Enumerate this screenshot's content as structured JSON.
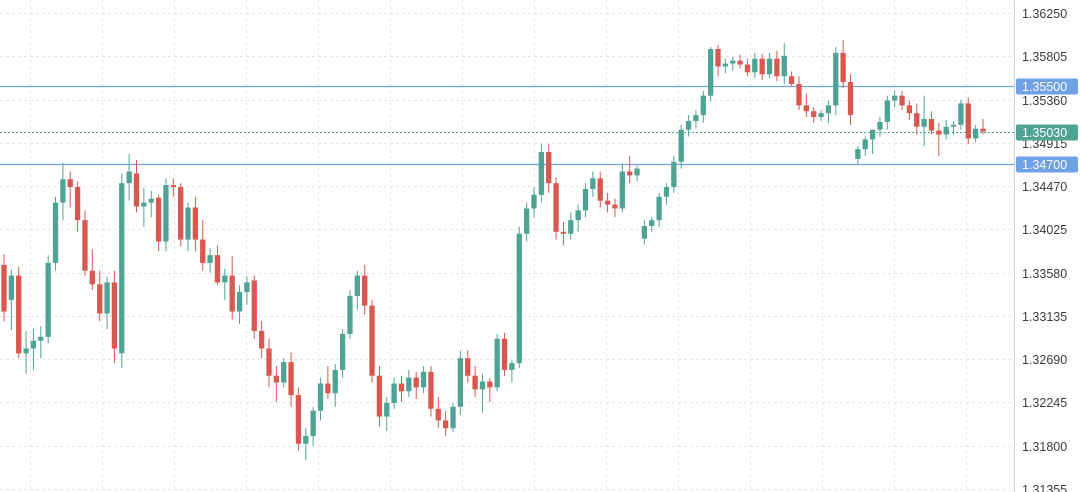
{
  "chart_data": {
    "type": "candlestick",
    "title": "",
    "xlabel": "",
    "ylabel": "",
    "ylim": [
      1.31355,
      1.3625
    ],
    "y_ticks": [
      "1.36250",
      "1.35805",
      "1.35360",
      "1.34915",
      "1.34470",
      "1.34025",
      "1.33580",
      "1.33135",
      "1.32690",
      "1.32245",
      "1.31800",
      "1.31355"
    ],
    "grid": true,
    "colors": {
      "up": "#4fa394",
      "down": "#d9574f",
      "line": "#6ea1e6",
      "current": "#4fa394",
      "grid": "#e6e6e6",
      "axis": "#cfcfcf"
    },
    "horizontal_lines": [
      {
        "value": 1.355,
        "label": "1.35500"
      },
      {
        "value": 1.347,
        "label": "1.34700"
      }
    ],
    "current_price": {
      "value": 1.3503,
      "label": "1.35030"
    },
    "candles": [
      [
        1.3366,
        1.3377,
        1.3308,
        1.3318
      ],
      [
        1.333,
        1.3361,
        1.3299,
        1.3355
      ],
      [
        1.3355,
        1.3364,
        1.327,
        1.3275
      ],
      [
        1.3275,
        1.3298,
        1.3254,
        1.328
      ],
      [
        1.328,
        1.33,
        1.3258,
        1.3288
      ],
      [
        1.3288,
        1.3303,
        1.327,
        1.3292
      ],
      [
        1.3292,
        1.3376,
        1.3285,
        1.3368
      ],
      [
        1.3368,
        1.3436,
        1.336,
        1.343
      ],
      [
        1.343,
        1.3471,
        1.3412,
        1.3454
      ],
      [
        1.3454,
        1.3462,
        1.3425,
        1.3446
      ],
      [
        1.3446,
        1.3452,
        1.34,
        1.3412
      ],
      [
        1.3412,
        1.3422,
        1.3355,
        1.336
      ],
      [
        1.336,
        1.3382,
        1.334,
        1.3346
      ],
      [
        1.3346,
        1.336,
        1.3308,
        1.3316
      ],
      [
        1.3316,
        1.3354,
        1.33,
        1.3348
      ],
      [
        1.3348,
        1.336,
        1.3265,
        1.328
      ],
      [
        1.3275,
        1.346,
        1.326,
        1.345
      ],
      [
        1.345,
        1.348,
        1.3432,
        1.3462
      ],
      [
        1.346,
        1.3474,
        1.342,
        1.3426
      ],
      [
        1.3426,
        1.3445,
        1.3405,
        1.343
      ],
      [
        1.343,
        1.3442,
        1.3415,
        1.3434
      ],
      [
        1.3435,
        1.3438,
        1.338,
        1.339
      ],
      [
        1.339,
        1.3455,
        1.338,
        1.3448
      ],
      [
        1.3448,
        1.3455,
        1.3436,
        1.3446
      ],
      [
        1.3446,
        1.345,
        1.3385,
        1.3392
      ],
      [
        1.3392,
        1.343,
        1.338,
        1.3425
      ],
      [
        1.3425,
        1.3436,
        1.338,
        1.3392
      ],
      [
        1.3392,
        1.3412,
        1.336,
        1.3368
      ],
      [
        1.3368,
        1.3383,
        1.3358,
        1.3376
      ],
      [
        1.3376,
        1.3386,
        1.3345,
        1.3348
      ],
      [
        1.3348,
        1.3362,
        1.333,
        1.3355
      ],
      [
        1.3355,
        1.3375,
        1.331,
        1.3318
      ],
      [
        1.3318,
        1.3345,
        1.3305,
        1.3338
      ],
      [
        1.3338,
        1.3354,
        1.3325,
        1.3348
      ],
      [
        1.335,
        1.3355,
        1.329,
        1.3298
      ],
      [
        1.3298,
        1.3308,
        1.327,
        1.328
      ],
      [
        1.328,
        1.329,
        1.324,
        1.3252
      ],
      [
        1.3252,
        1.3262,
        1.3225,
        1.3245
      ],
      [
        1.3245,
        1.327,
        1.324,
        1.3266
      ],
      [
        1.3266,
        1.3276,
        1.322,
        1.3232
      ],
      [
        1.3232,
        1.324,
        1.3175,
        1.3182
      ],
      [
        1.3182,
        1.3198,
        1.3165,
        1.319
      ],
      [
        1.319,
        1.322,
        1.318,
        1.3216
      ],
      [
        1.3216,
        1.325,
        1.3206,
        1.3244
      ],
      [
        1.3244,
        1.3262,
        1.3228,
        1.3234
      ],
      [
        1.3234,
        1.3264,
        1.322,
        1.3258
      ],
      [
        1.3258,
        1.33,
        1.325,
        1.3295
      ],
      [
        1.3295,
        1.334,
        1.329,
        1.3334
      ],
      [
        1.3334,
        1.336,
        1.332,
        1.3355
      ],
      [
        1.3355,
        1.3366,
        1.3315,
        1.3324
      ],
      [
        1.3324,
        1.333,
        1.3245,
        1.3252
      ],
      [
        1.3252,
        1.3262,
        1.32,
        1.321
      ],
      [
        1.321,
        1.323,
        1.3195,
        1.3224
      ],
      [
        1.3224,
        1.325,
        1.3218,
        1.3244
      ],
      [
        1.3244,
        1.3252,
        1.3225,
        1.3236
      ],
      [
        1.3236,
        1.3258,
        1.323,
        1.325
      ],
      [
        1.325,
        1.3256,
        1.3228,
        1.324
      ],
      [
        1.324,
        1.3262,
        1.3234,
        1.3256
      ],
      [
        1.3256,
        1.3262,
        1.321,
        1.3218
      ],
      [
        1.3218,
        1.323,
        1.3198,
        1.3206
      ],
      [
        1.3206,
        1.3216,
        1.319,
        1.3198
      ],
      [
        1.3198,
        1.3224,
        1.3194,
        1.322
      ],
      [
        1.322,
        1.3278,
        1.3212,
        1.327
      ],
      [
        1.327,
        1.3278,
        1.3245,
        1.3252
      ],
      [
        1.3252,
        1.3262,
        1.323,
        1.3238
      ],
      [
        1.3238,
        1.3254,
        1.3214,
        1.3246
      ],
      [
        1.3246,
        1.325,
        1.3225,
        1.324
      ],
      [
        1.324,
        1.3295,
        1.3236,
        1.329
      ],
      [
        1.329,
        1.3296,
        1.3252,
        1.3258
      ],
      [
        1.3258,
        1.3268,
        1.3245,
        1.3265
      ],
      [
        1.3265,
        1.3405,
        1.326,
        1.3398
      ],
      [
        1.3398,
        1.343,
        1.339,
        1.3424
      ],
      [
        1.3424,
        1.3446,
        1.3415,
        1.3438
      ],
      [
        1.3438,
        1.349,
        1.343,
        1.3482
      ],
      [
        1.3482,
        1.349,
        1.344,
        1.345
      ],
      [
        1.345,
        1.3456,
        1.3392,
        1.34
      ],
      [
        1.34,
        1.341,
        1.3386,
        1.3398
      ],
      [
        1.3398,
        1.342,
        1.3392,
        1.3412
      ],
      [
        1.3412,
        1.3428,
        1.34,
        1.3422
      ],
      [
        1.3422,
        1.345,
        1.3415,
        1.3444
      ],
      [
        1.3444,
        1.3462,
        1.3436,
        1.3455
      ],
      [
        1.3455,
        1.3462,
        1.3425,
        1.3432
      ],
      [
        1.3432,
        1.344,
        1.342,
        1.3428
      ],
      [
        1.3428,
        1.3434,
        1.3415,
        1.3424
      ],
      [
        1.3424,
        1.347,
        1.342,
        1.3462
      ],
      [
        1.3462,
        1.3478,
        1.345,
        1.3458
      ],
      [
        1.3458,
        1.3468,
        1.3452,
        1.3465
      ],
      [
        1.3393,
        1.3412,
        1.3387,
        1.3406
      ],
      [
        1.3406,
        1.3415,
        1.34,
        1.3412
      ],
      [
        1.3412,
        1.344,
        1.3405,
        1.3436
      ],
      [
        1.3436,
        1.345,
        1.3428,
        1.3446
      ],
      [
        1.3446,
        1.3478,
        1.344,
        1.3472
      ],
      [
        1.3472,
        1.351,
        1.3465,
        1.3505
      ],
      [
        1.3505,
        1.352,
        1.3498,
        1.3514
      ],
      [
        1.3514,
        1.3525,
        1.3506,
        1.352
      ],
      [
        1.352,
        1.3545,
        1.3512,
        1.354
      ],
      [
        1.354,
        1.359,
        1.3534,
        1.3588
      ],
      [
        1.3588,
        1.3592,
        1.356,
        1.357
      ],
      [
        1.357,
        1.3578,
        1.3563,
        1.3573
      ],
      [
        1.3573,
        1.358,
        1.3566,
        1.3576
      ],
      [
        1.3576,
        1.3582,
        1.3568,
        1.3572
      ],
      [
        1.3572,
        1.3578,
        1.356,
        1.3564
      ],
      [
        1.3564,
        1.3584,
        1.3558,
        1.3578
      ],
      [
        1.3578,
        1.3583,
        1.3556,
        1.3562
      ],
      [
        1.3562,
        1.3584,
        1.3558,
        1.3578
      ],
      [
        1.3578,
        1.3586,
        1.3555,
        1.356
      ],
      [
        1.356,
        1.3594,
        1.3552,
        1.3581
      ],
      [
        1.356,
        1.3565,
        1.355,
        1.3552
      ],
      [
        1.3552,
        1.356,
        1.3525,
        1.353
      ],
      [
        1.353,
        1.3542,
        1.3518,
        1.3524
      ],
      [
        1.3524,
        1.3528,
        1.3512,
        1.3518
      ],
      [
        1.3518,
        1.3525,
        1.3514,
        1.3522
      ],
      [
        1.3522,
        1.3535,
        1.3512,
        1.353
      ],
      [
        1.353,
        1.359,
        1.352,
        1.3584
      ],
      [
        1.3584,
        1.3597,
        1.3548,
        1.3554
      ],
      [
        1.3554,
        1.3562,
        1.351,
        1.352
      ],
      [
        1.3475,
        1.3488,
        1.347,
        1.3485
      ],
      [
        1.3485,
        1.3498,
        1.3478,
        1.3495
      ],
      [
        1.3495,
        1.3505,
        1.348,
        1.3505
      ],
      [
        1.3505,
        1.3518,
        1.3498,
        1.3513
      ],
      [
        1.3513,
        1.354,
        1.3505,
        1.3535
      ],
      [
        1.3535,
        1.3545,
        1.3528,
        1.354
      ],
      [
        1.354,
        1.3545,
        1.3525,
        1.353
      ],
      [
        1.353,
        1.3535,
        1.3515,
        1.3522
      ],
      [
        1.3522,
        1.3532,
        1.35,
        1.3508
      ],
      [
        1.3508,
        1.354,
        1.3488,
        1.3516
      ],
      [
        1.3516,
        1.3524,
        1.35,
        1.3504
      ],
      [
        1.3504,
        1.3512,
        1.3478,
        1.35
      ],
      [
        1.35,
        1.3515,
        1.3495,
        1.3508
      ],
      [
        1.3508,
        1.3514,
        1.35,
        1.351
      ],
      [
        1.351,
        1.3536,
        1.3505,
        1.3532
      ],
      [
        1.3532,
        1.3538,
        1.349,
        1.3496
      ],
      [
        1.3496,
        1.351,
        1.3492,
        1.3506
      ],
      [
        1.3506,
        1.3516,
        1.35,
        1.3503
      ]
    ]
  }
}
